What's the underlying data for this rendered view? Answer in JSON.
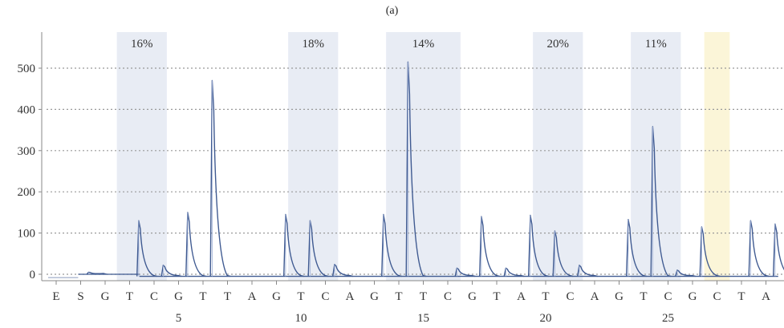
{
  "panel_label": "(a)",
  "chart_data": {
    "type": "line",
    "title": "",
    "xlabel": "",
    "ylabel": "",
    "ylim": [
      -15,
      560
    ],
    "y_ticks": [
      0,
      100,
      200,
      300,
      400,
      500
    ],
    "grid": "horizontal dotted",
    "bases": [
      "E",
      "S",
      "G",
      "T",
      "C",
      "G",
      "T",
      "T",
      "A",
      "G",
      "T",
      "C",
      "A",
      "G",
      "T",
      "T",
      "C",
      "G",
      "T",
      "A",
      "T",
      "C",
      "A",
      "G",
      "T",
      "C",
      "G",
      "C",
      "T",
      "A"
    ],
    "position_labels": [
      {
        "position": 5,
        "label": "5"
      },
      {
        "position": 10,
        "label": "10"
      },
      {
        "position": 15,
        "label": "15"
      },
      {
        "position": 20,
        "label": "20"
      },
      {
        "position": 25,
        "label": "25"
      }
    ],
    "highlighted_regions": [
      {
        "from": 3,
        "to": 4,
        "label": "16%",
        "color": "#e8ecf4"
      },
      {
        "from": 10,
        "to": 11,
        "label": "18%",
        "color": "#e8ecf4"
      },
      {
        "from": 14,
        "to": 16,
        "label": "14%",
        "color": "#e8ecf4"
      },
      {
        "from": 20,
        "to": 21,
        "label": "20%",
        "color": "#e8ecf4"
      },
      {
        "from": 24,
        "to": 25,
        "label": "11%",
        "color": "#e8ecf4"
      },
      {
        "from": 27,
        "to": 27,
        "label": "",
        "color": "#fbf5d8"
      }
    ],
    "series_color": "#3f5a91",
    "baseline_segments": [
      {
        "from": 0.9,
        "to": 3.4,
        "y": 0
      },
      {
        "from": 3.4,
        "to": 29.5,
        "y": -5
      }
    ],
    "peaks": [
      {
        "position": 1.35,
        "height": 5
      },
      {
        "position": 3.4,
        "height": 130
      },
      {
        "position": 4.4,
        "height": 22
      },
      {
        "position": 5.4,
        "height": 150
      },
      {
        "position": 6.4,
        "height": 470
      },
      {
        "position": 9.4,
        "height": 145
      },
      {
        "position": 10.4,
        "height": 130
      },
      {
        "position": 11.4,
        "height": 24
      },
      {
        "position": 13.4,
        "height": 145
      },
      {
        "position": 14.4,
        "height": 515
      },
      {
        "position": 16.4,
        "height": 15
      },
      {
        "position": 17.4,
        "height": 140
      },
      {
        "position": 18.4,
        "height": 15
      },
      {
        "position": 19.4,
        "height": 143
      },
      {
        "position": 20.4,
        "height": 105
      },
      {
        "position": 21.4,
        "height": 22
      },
      {
        "position": 23.4,
        "height": 133
      },
      {
        "position": 24.4,
        "height": 358
      },
      {
        "position": 25.4,
        "height": 10
      },
      {
        "position": 26.4,
        "height": 115
      },
      {
        "position": 28.4,
        "height": 130
      },
      {
        "position": 29.4,
        "height": 122
      }
    ]
  }
}
